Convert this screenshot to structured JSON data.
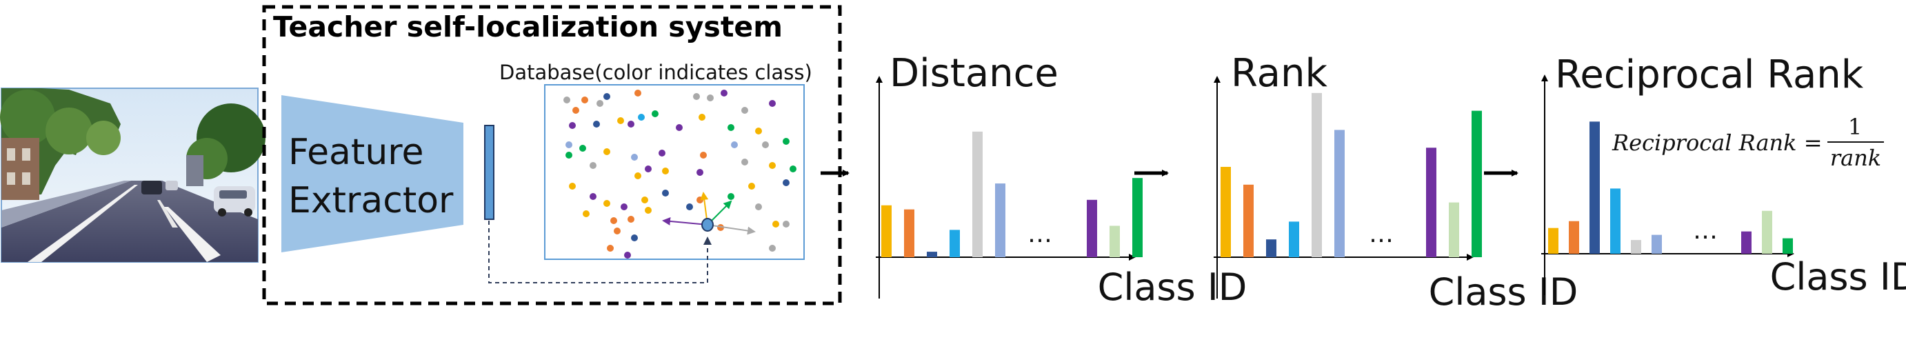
{
  "teacher_box": {
    "title": "Teacher self-localization system"
  },
  "feature_extractor": {
    "line1": "Feature",
    "line2": "Extractor"
  },
  "database": {
    "label": "Database(color indicates class)"
  },
  "class_colors": [
    "#F5B400",
    "#ED7D31",
    "#2F5597",
    "#1FA8E6",
    "#CFCFCF",
    "#8FAADC",
    "#7030A0",
    "#C5E0B4",
    "#00B050",
    "#A9A9A9"
  ],
  "ellipsis": "…",
  "chart_data": [
    {
      "type": "bar",
      "title": "Distance",
      "xlabel": "Class ID",
      "ylabel": "",
      "categories": [
        "",
        "",
        "",
        "",
        "",
        "",
        "",
        "",
        ""
      ],
      "values": [
        38,
        35,
        4,
        20,
        92,
        54,
        42,
        23,
        58
      ],
      "colors": [
        "#F5B400",
        "#ED7D31",
        "#2F5597",
        "#1FA8E6",
        "#CFCFCF",
        "#8FAADC",
        "#7030A0",
        "#C5E0B4",
        "#00B050"
      ],
      "ellipsis_after_index": 5,
      "ylim": [
        0,
        100
      ]
    },
    {
      "type": "bar",
      "title": "Rank",
      "xlabel": "Class ID",
      "ylabel": "",
      "categories": [
        "",
        "",
        "",
        "",
        "",
        "",
        "",
        "",
        ""
      ],
      "values": [
        66,
        53,
        13,
        26,
        120,
        93,
        80,
        40,
        107
      ],
      "colors": [
        "#F5B400",
        "#ED7D31",
        "#2F5597",
        "#1FA8E6",
        "#CFCFCF",
        "#8FAADC",
        "#7030A0",
        "#C5E0B4",
        "#00B050"
      ],
      "ellipsis_after_index": 5,
      "ylim": [
        0,
        130
      ]
    },
    {
      "type": "bar",
      "title": "Reciprocal Rank",
      "xlabel": "Class ID",
      "ylabel": "",
      "categories": [
        "",
        "",
        "",
        "",
        "",
        "",
        "",
        "",
        ""
      ],
      "values": [
        0.015,
        0.019,
        0.077,
        0.038,
        0.008,
        0.011,
        0.013,
        0.025,
        0.009
      ],
      "colors": [
        "#F5B400",
        "#ED7D31",
        "#2F5597",
        "#1FA8E6",
        "#CFCFCF",
        "#8FAADC",
        "#7030A0",
        "#C5E0B4",
        "#00B050"
      ],
      "ellipsis_after_index": 5,
      "ylim": [
        0,
        0.09
      ],
      "formula": {
        "lhs": "Reciprocal Rank =",
        "numerator": "1",
        "denominator": "rank"
      }
    }
  ]
}
